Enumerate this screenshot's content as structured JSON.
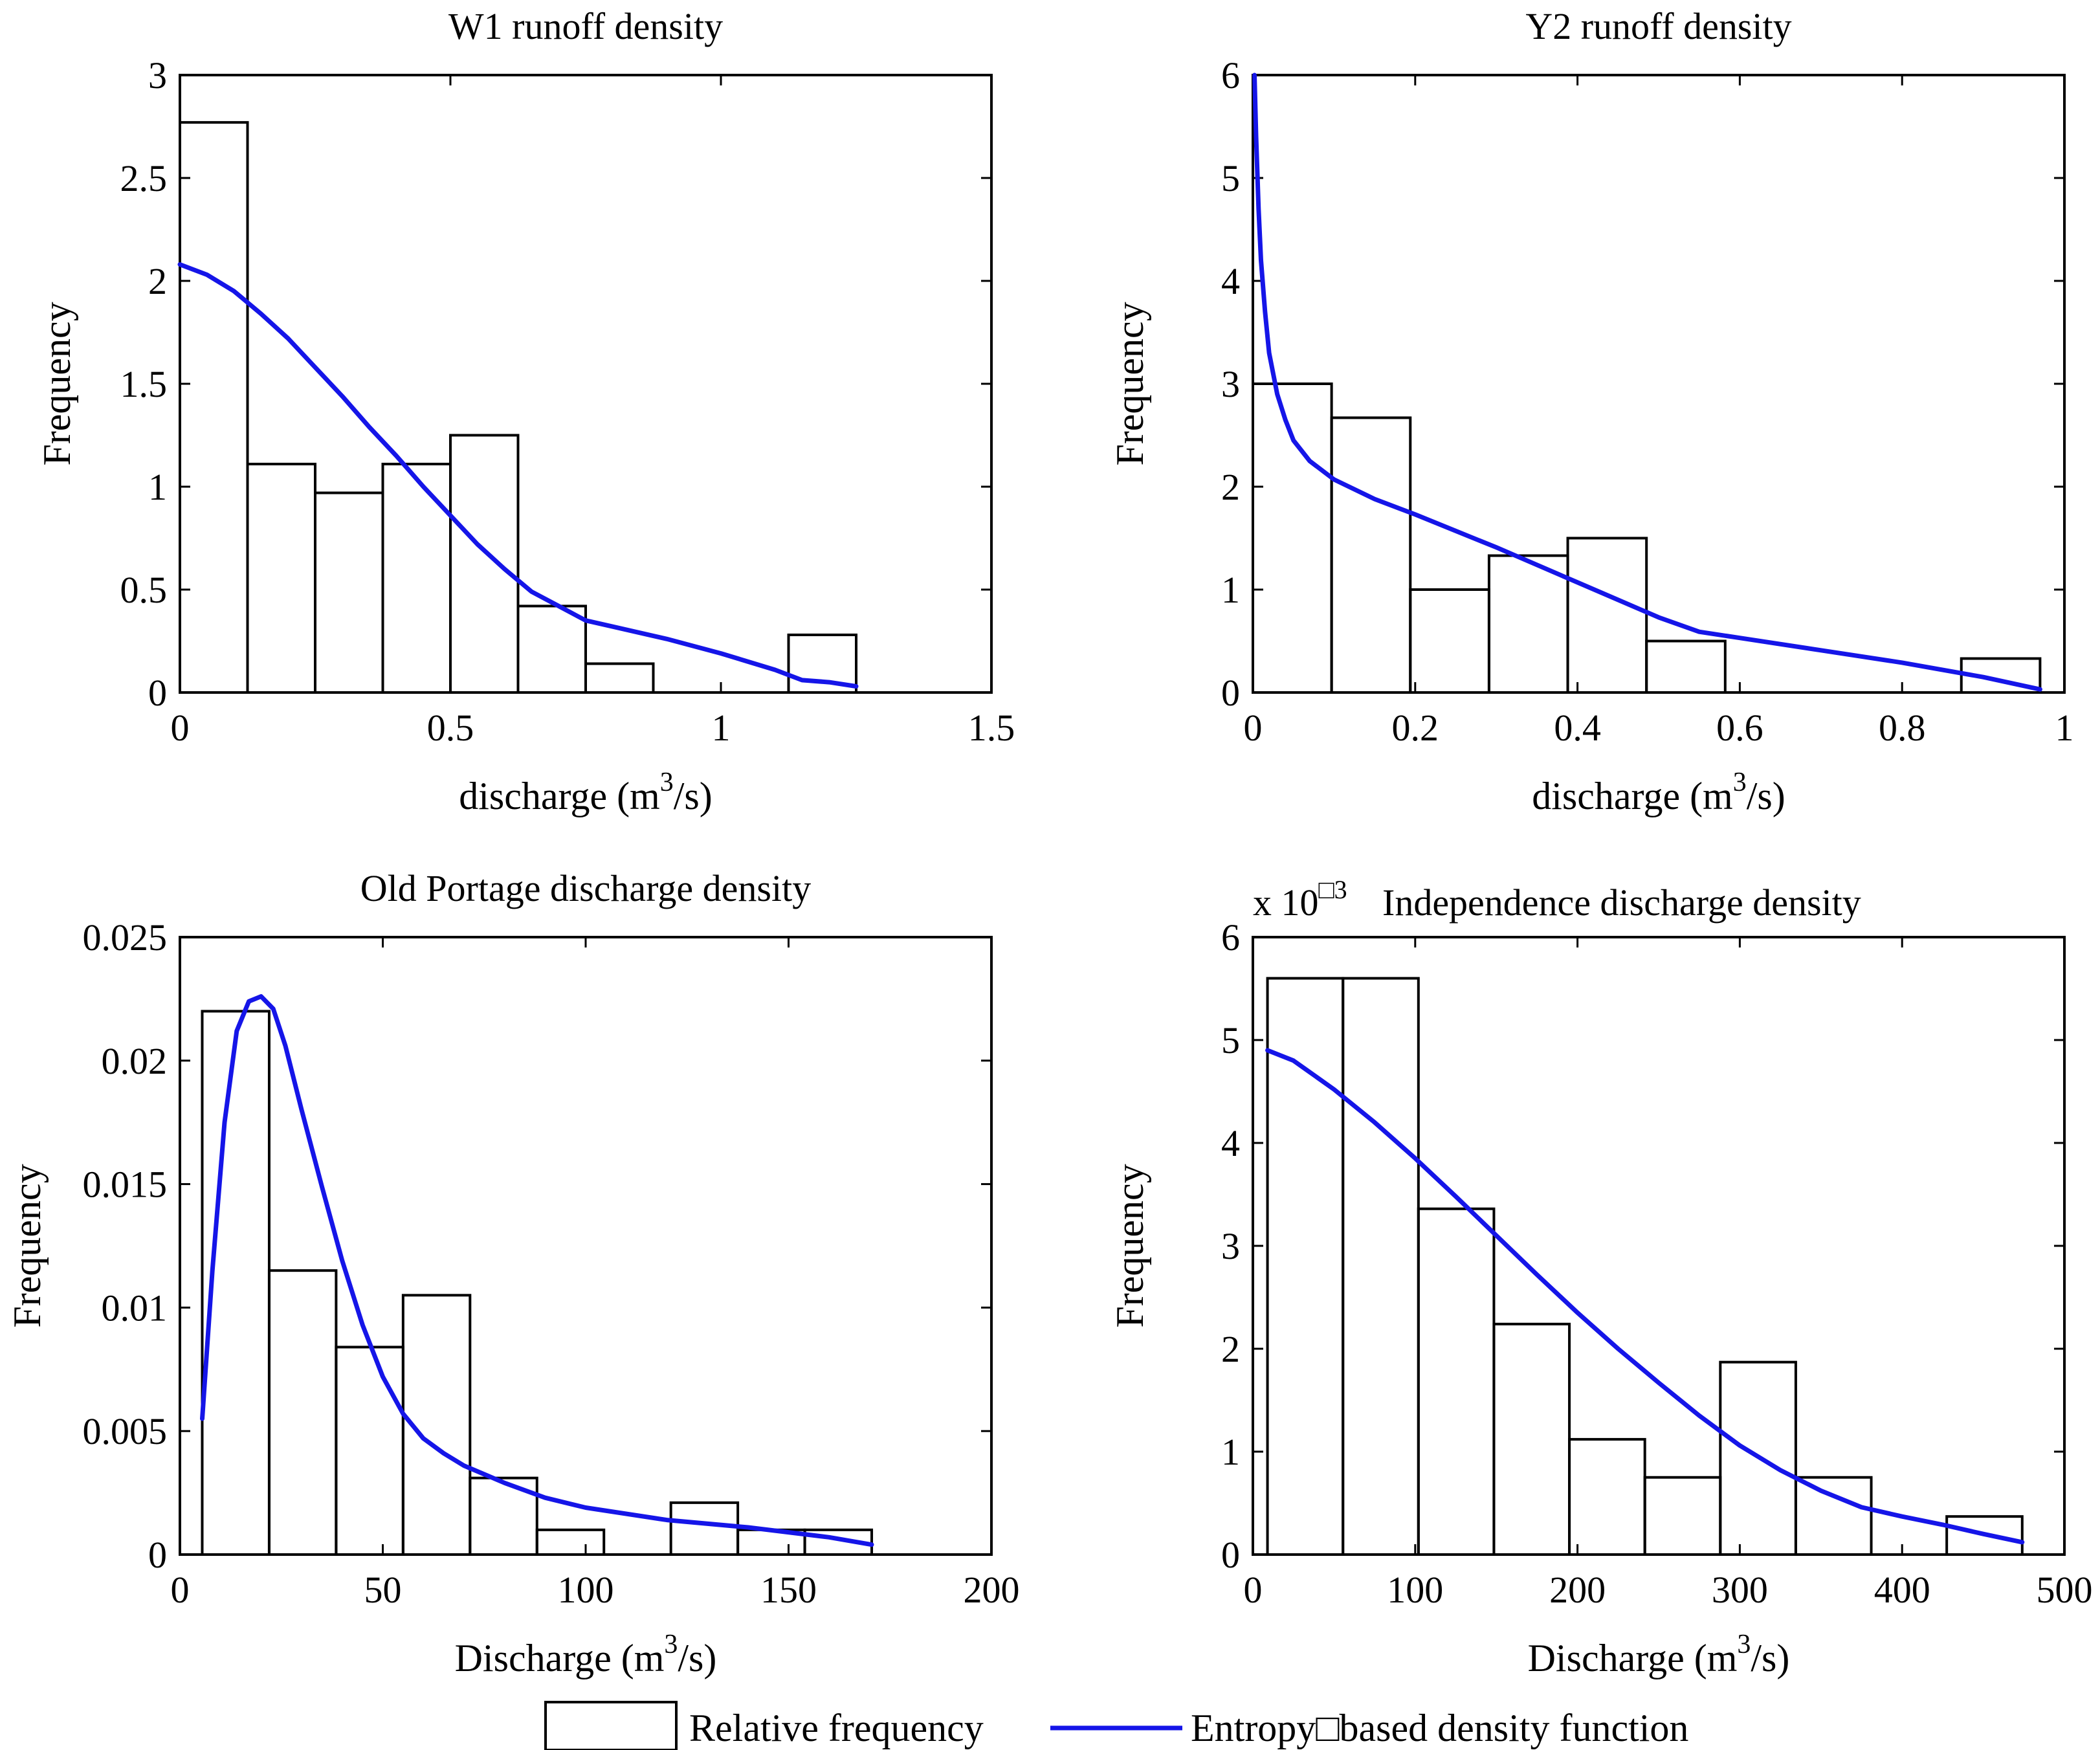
{
  "colors": {
    "curve": "#1515e8",
    "bars": "#000000",
    "background": "#ffffff"
  },
  "legend": {
    "histogram_label": "Relative frequency",
    "curve_label": "Entropy□based density function"
  },
  "chart_data": [
    {
      "type": "bar",
      "title": "W1 runoff density",
      "xlabel": "discharge (m",
      "xlabel_sup": "3",
      "xlabel_suffix": "/s)",
      "ylabel": "Frequency",
      "xlim": [
        0,
        1.5
      ],
      "ylim": [
        0,
        3
      ],
      "xticks": [
        0,
        0.5,
        1,
        1.5
      ],
      "xtick_labels": [
        "0",
        "0.5",
        "1",
        "1.5"
      ],
      "yticks": [
        0,
        0.5,
        1,
        1.5,
        2,
        2.5,
        3
      ],
      "ytick_labels": [
        "0",
        "0.5",
        "1",
        "1.5",
        "2",
        "2.5",
        "3"
      ],
      "multiplier": null,
      "bins": [
        {
          "start": 0.0,
          "end": 0.125,
          "value": 2.77
        },
        {
          "start": 0.125,
          "end": 0.25,
          "value": 1.11
        },
        {
          "start": 0.25,
          "end": 0.375,
          "value": 0.97
        },
        {
          "start": 0.375,
          "end": 0.5,
          "value": 1.11
        },
        {
          "start": 0.5,
          "end": 0.625,
          "value": 1.25
        },
        {
          "start": 0.625,
          "end": 0.75,
          "value": 0.42
        },
        {
          "start": 0.75,
          "end": 0.875,
          "value": 0.14
        },
        {
          "start": 0.875,
          "end": 1.0,
          "value": 0
        },
        {
          "start": 1.0,
          "end": 1.125,
          "value": 0
        },
        {
          "start": 1.125,
          "end": 1.25,
          "value": 0.28
        }
      ],
      "curve": {
        "name": "Entropy-based density function",
        "x": [
          0,
          0.05,
          0.1,
          0.15,
          0.2,
          0.25,
          0.3,
          0.35,
          0.4,
          0.45,
          0.5,
          0.55,
          0.6,
          0.65,
          0.7,
          0.75,
          0.8,
          0.9,
          1.0,
          1.1,
          1.15,
          1.2,
          1.25
        ],
        "y": [
          2.08,
          2.03,
          1.95,
          1.84,
          1.72,
          1.58,
          1.44,
          1.29,
          1.15,
          1.0,
          0.86,
          0.72,
          0.6,
          0.49,
          0.42,
          0.35,
          0.32,
          0.26,
          0.19,
          0.11,
          0.06,
          0.05,
          0.03
        ]
      }
    },
    {
      "type": "bar",
      "title": "Y2 runoff density",
      "xlabel": "discharge (m",
      "xlabel_sup": "3",
      "xlabel_suffix": "/s)",
      "ylabel": "Frequency",
      "xlim": [
        0,
        1
      ],
      "ylim": [
        0,
        6
      ],
      "xticks": [
        0,
        0.2,
        0.4,
        0.6,
        0.8,
        1
      ],
      "xtick_labels": [
        "0",
        "0.2",
        "0.4",
        "0.6",
        "0.8",
        "1"
      ],
      "yticks": [
        0,
        1,
        2,
        3,
        4,
        5,
        6
      ],
      "ytick_labels": [
        "0",
        "1",
        "2",
        "3",
        "4",
        "5",
        "6"
      ],
      "multiplier": null,
      "bins": [
        {
          "start": 0.0,
          "end": 0.097,
          "value": 3.0
        },
        {
          "start": 0.097,
          "end": 0.194,
          "value": 2.67
        },
        {
          "start": 0.194,
          "end": 0.291,
          "value": 1.0
        },
        {
          "start": 0.291,
          "end": 0.388,
          "value": 1.33
        },
        {
          "start": 0.388,
          "end": 0.485,
          "value": 1.5
        },
        {
          "start": 0.485,
          "end": 0.582,
          "value": 0.5
        },
        {
          "start": 0.582,
          "end": 0.679,
          "value": 0
        },
        {
          "start": 0.679,
          "end": 0.776,
          "value": 0
        },
        {
          "start": 0.776,
          "end": 0.873,
          "value": 0
        },
        {
          "start": 0.873,
          "end": 0.97,
          "value": 0.33
        }
      ],
      "curve": {
        "name": "Entropy-based density function",
        "x": [
          0.002,
          0.004,
          0.007,
          0.01,
          0.015,
          0.02,
          0.03,
          0.04,
          0.05,
          0.07,
          0.1,
          0.15,
          0.2,
          0.25,
          0.3,
          0.35,
          0.4,
          0.45,
          0.5,
          0.55,
          0.6,
          0.7,
          0.8,
          0.9,
          0.97
        ],
        "y": [
          6.0,
          5.4,
          4.7,
          4.2,
          3.7,
          3.3,
          2.9,
          2.65,
          2.45,
          2.25,
          2.07,
          1.88,
          1.73,
          1.57,
          1.41,
          1.24,
          1.07,
          0.9,
          0.73,
          0.59,
          0.53,
          0.41,
          0.29,
          0.15,
          0.03
        ]
      }
    },
    {
      "type": "bar",
      "title": "Old Portage discharge density",
      "xlabel": "Discharge (m",
      "xlabel_sup": "3",
      "xlabel_suffix": "/s)",
      "ylabel": "Frequency",
      "xlim": [
        0,
        200
      ],
      "ylim": [
        0,
        0.025
      ],
      "xticks": [
        0,
        50,
        100,
        150,
        200
      ],
      "xtick_labels": [
        "0",
        "50",
        "100",
        "150",
        "200"
      ],
      "yticks": [
        0,
        0.005,
        0.01,
        0.015,
        0.02,
        0.025
      ],
      "ytick_labels": [
        "0",
        "0.005",
        "0.01",
        "0.015",
        "0.02",
        "0.025"
      ],
      "multiplier": null,
      "bins": [
        {
          "start": 5.5,
          "end": 22.0,
          "value": 0.022
        },
        {
          "start": 22.0,
          "end": 38.5,
          "value": 0.0115
        },
        {
          "start": 38.5,
          "end": 55.0,
          "value": 0.0084
        },
        {
          "start": 55.0,
          "end": 71.5,
          "value": 0.0105
        },
        {
          "start": 71.5,
          "end": 88.0,
          "value": 0.0031
        },
        {
          "start": 88.0,
          "end": 104.5,
          "value": 0.001
        },
        {
          "start": 104.5,
          "end": 121.0,
          "value": 0
        },
        {
          "start": 121.0,
          "end": 137.5,
          "value": 0.0021
        },
        {
          "start": 137.5,
          "end": 154.0,
          "value": 0.001
        },
        {
          "start": 154.0,
          "end": 170.5,
          "value": 0.001
        }
      ],
      "curve": {
        "name": "Entropy-based density function",
        "x": [
          5.5,
          8,
          11,
          14,
          17,
          20,
          23,
          26,
          30,
          35,
          40,
          45,
          50,
          55,
          60,
          65,
          70,
          80,
          90,
          100,
          120,
          140,
          160,
          170.5
        ],
        "y": [
          0.0055,
          0.0115,
          0.0175,
          0.0212,
          0.0224,
          0.0226,
          0.0221,
          0.0206,
          0.018,
          0.0149,
          0.0119,
          0.0093,
          0.0072,
          0.0057,
          0.0047,
          0.0041,
          0.0036,
          0.0029,
          0.0023,
          0.0019,
          0.0014,
          0.0011,
          0.0007,
          0.0004
        ]
      }
    },
    {
      "type": "bar",
      "title": "Independence discharge density",
      "xlabel": "Discharge (m",
      "xlabel_sup": "3",
      "xlabel_suffix": "/s)",
      "ylabel": "Frequency",
      "xlim": [
        0,
        500
      ],
      "ylim": [
        0,
        6
      ],
      "xticks": [
        0,
        100,
        200,
        300,
        400,
        500
      ],
      "xtick_labels": [
        "0",
        "100",
        "200",
        "300",
        "400",
        "500"
      ],
      "yticks": [
        0,
        1,
        2,
        3,
        4,
        5,
        6
      ],
      "ytick_labels": [
        "0",
        "1",
        "2",
        "3",
        "4",
        "5",
        "6"
      ],
      "multiplier": {
        "prefix": "x 10",
        "exponent": "□3"
      },
      "bins": [
        {
          "start": 9,
          "end": 55.5,
          "value": 5.6
        },
        {
          "start": 55.5,
          "end": 102,
          "value": 5.6
        },
        {
          "start": 102,
          "end": 148.5,
          "value": 3.36
        },
        {
          "start": 148.5,
          "end": 195,
          "value": 2.24
        },
        {
          "start": 195,
          "end": 241.5,
          "value": 1.12
        },
        {
          "start": 241.5,
          "end": 288,
          "value": 0.75
        },
        {
          "start": 288,
          "end": 334.5,
          "value": 1.87
        },
        {
          "start": 334.5,
          "end": 381,
          "value": 0.75
        },
        {
          "start": 381,
          "end": 427.5,
          "value": 0
        },
        {
          "start": 427.5,
          "end": 474,
          "value": 0.37
        }
      ],
      "curve": {
        "name": "Entropy-based density function",
        "x": [
          9,
          25,
          50,
          75,
          100,
          125,
          150,
          175,
          200,
          225,
          250,
          275,
          300,
          325,
          350,
          375,
          400,
          425,
          450,
          474
        ],
        "y": [
          4.9,
          4.8,
          4.52,
          4.2,
          3.85,
          3.48,
          3.1,
          2.72,
          2.35,
          2.0,
          1.67,
          1.35,
          1.06,
          0.82,
          0.62,
          0.46,
          0.37,
          0.29,
          0.2,
          0.12
        ]
      }
    }
  ]
}
